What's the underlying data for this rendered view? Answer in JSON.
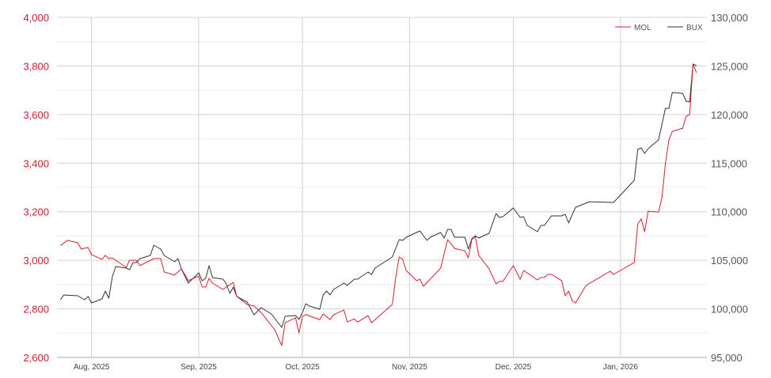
{
  "chart_data": {
    "type": "line",
    "title": "",
    "xlabel": "",
    "ylabel": "",
    "xlim": [
      "2025-07-22",
      "2026-01-26"
    ],
    "ylim_left": [
      2600,
      4000
    ],
    "ylim_right": [
      95000,
      130000
    ],
    "grid": true,
    "legend_position": "top-right",
    "left_ticks": [
      "2,600",
      "2,800",
      "3,000",
      "3,200",
      "3,400",
      "3,600",
      "3,800",
      "4,000"
    ],
    "left_tick_values": [
      2600,
      2800,
      3000,
      3200,
      3400,
      3600,
      3800,
      4000
    ],
    "right_ticks": [
      "95,000",
      "100,000",
      "105,000",
      "110,000",
      "115,000",
      "120,000",
      "125,000",
      "130,000"
    ],
    "right_tick_values": [
      95000,
      100000,
      105000,
      110000,
      115000,
      120000,
      125000,
      130000
    ],
    "x_ticks": [
      "Aug, 2025",
      "Sep, 2025",
      "Oct, 2025",
      "Nov, 2025",
      "Dec, 2025",
      "Jan, 2026"
    ],
    "x_tick_dates": [
      "2025-08-01",
      "2025-09-01",
      "2025-10-01",
      "2025-11-01",
      "2025-12-01",
      "2026-01-01"
    ],
    "series": [
      {
        "name": "MOL",
        "axis": "left",
        "color": "#d0202e",
        "points": [
          [
            "2025-07-23",
            3060
          ],
          [
            "2025-07-25",
            3082
          ],
          [
            "2025-07-28",
            3072
          ],
          [
            "2025-07-29",
            3046
          ],
          [
            "2025-07-31",
            3053
          ],
          [
            "2025-08-01",
            3023
          ],
          [
            "2025-08-04",
            3004
          ],
          [
            "2025-08-05",
            3020
          ],
          [
            "2025-08-06",
            3007
          ],
          [
            "2025-08-07",
            3010
          ],
          [
            "2025-08-11",
            2971
          ],
          [
            "2025-08-12",
            3000
          ],
          [
            "2025-08-14",
            3000
          ],
          [
            "2025-08-15",
            2978
          ],
          [
            "2025-08-19",
            3007
          ],
          [
            "2025-08-21",
            3007
          ],
          [
            "2025-08-22",
            2952
          ],
          [
            "2025-08-25",
            2939
          ],
          [
            "2025-08-27",
            2965
          ],
          [
            "2025-08-29",
            2916
          ],
          [
            "2025-09-01",
            2935
          ],
          [
            "2025-09-02",
            2890
          ],
          [
            "2025-09-03",
            2890
          ],
          [
            "2025-09-04",
            2926
          ],
          [
            "2025-09-05",
            2906
          ],
          [
            "2025-09-08",
            2880
          ],
          [
            "2025-09-11",
            2909
          ],
          [
            "2025-09-12",
            2851
          ],
          [
            "2025-09-15",
            2818
          ],
          [
            "2025-09-17",
            2812
          ],
          [
            "2025-09-19",
            2786
          ],
          [
            "2025-09-23",
            2714
          ],
          [
            "2025-09-25",
            2649
          ],
          [
            "2025-09-26",
            2743
          ],
          [
            "2025-09-29",
            2763
          ],
          [
            "2025-09-30",
            2701
          ],
          [
            "2025-10-01",
            2769
          ],
          [
            "2025-10-02",
            2776
          ],
          [
            "2025-10-06",
            2756
          ],
          [
            "2025-10-07",
            2779
          ],
          [
            "2025-10-09",
            2756
          ],
          [
            "2025-10-10",
            2776
          ],
          [
            "2025-10-13",
            2795
          ],
          [
            "2025-10-14",
            2746
          ],
          [
            "2025-10-16",
            2759
          ],
          [
            "2025-10-17",
            2746
          ],
          [
            "2025-10-20",
            2772
          ],
          [
            "2025-10-21",
            2743
          ],
          [
            "2025-10-27",
            2818
          ],
          [
            "2025-10-28",
            2932
          ],
          [
            "2025-10-29",
            3013
          ],
          [
            "2025-10-30",
            3004
          ],
          [
            "2025-10-31",
            2958
          ],
          [
            "2025-11-03",
            2916
          ],
          [
            "2025-11-04",
            2922
          ],
          [
            "2025-11-05",
            2893
          ],
          [
            "2025-11-10",
            2968
          ],
          [
            "2025-11-12",
            3085
          ],
          [
            "2025-11-14",
            3049
          ],
          [
            "2025-11-17",
            3039
          ],
          [
            "2025-11-18",
            3010
          ],
          [
            "2025-11-19",
            3085
          ],
          [
            "2025-11-20",
            3098
          ],
          [
            "2025-11-21",
            3020
          ],
          [
            "2025-11-24",
            2965
          ],
          [
            "2025-11-26",
            2903
          ],
          [
            "2025-11-27",
            2913
          ],
          [
            "2025-11-28",
            2913
          ],
          [
            "2025-12-01",
            2978
          ],
          [
            "2025-12-03",
            2922
          ],
          [
            "2025-12-04",
            2958
          ],
          [
            "2025-12-08",
            2919
          ],
          [
            "2025-12-09",
            2929
          ],
          [
            "2025-12-10",
            2929
          ],
          [
            "2025-12-11",
            2942
          ],
          [
            "2025-12-12",
            2942
          ],
          [
            "2025-12-15",
            2916
          ],
          [
            "2025-12-16",
            2854
          ],
          [
            "2025-12-17",
            2873
          ],
          [
            "2025-12-18",
            2834
          ],
          [
            "2025-12-19",
            2824
          ],
          [
            "2025-12-22",
            2896
          ],
          [
            "2025-12-29",
            2955
          ],
          [
            "2025-12-30",
            2942
          ],
          [
            "2026-01-05",
            2991
          ],
          [
            "2026-01-06",
            3150
          ],
          [
            "2026-01-07",
            3170
          ],
          [
            "2026-01-08",
            3118
          ],
          [
            "2026-01-09",
            3202
          ],
          [
            "2026-01-12",
            3198
          ],
          [
            "2026-01-13",
            3258
          ],
          [
            "2026-01-14",
            3398
          ],
          [
            "2026-01-15",
            3495
          ],
          [
            "2026-01-16",
            3531
          ],
          [
            "2026-01-19",
            3544
          ],
          [
            "2026-01-20",
            3593
          ],
          [
            "2026-01-21",
            3600
          ],
          [
            "2026-01-22",
            3808
          ],
          [
            "2026-01-23",
            3772
          ]
        ]
      },
      {
        "name": "BUX",
        "axis": "right",
        "color": "#333333",
        "points": [
          [
            "2025-07-23",
            100940
          ],
          [
            "2025-07-24",
            101430
          ],
          [
            "2025-07-28",
            101350
          ],
          [
            "2025-07-30",
            100940
          ],
          [
            "2025-07-31",
            101270
          ],
          [
            "2025-08-01",
            100615
          ],
          [
            "2025-08-04",
            101020
          ],
          [
            "2025-08-05",
            101840
          ],
          [
            "2025-08-06",
            101100
          ],
          [
            "2025-08-07",
            103300
          ],
          [
            "2025-08-08",
            104360
          ],
          [
            "2025-08-11",
            104200
          ],
          [
            "2025-08-12",
            104030
          ],
          [
            "2025-08-13",
            104770
          ],
          [
            "2025-08-14",
            104770
          ],
          [
            "2025-08-15",
            105170
          ],
          [
            "2025-08-18",
            105500
          ],
          [
            "2025-08-19",
            106560
          ],
          [
            "2025-08-21",
            106150
          ],
          [
            "2025-08-22",
            105500
          ],
          [
            "2025-08-25",
            104850
          ],
          [
            "2025-08-26",
            105170
          ],
          [
            "2025-08-27",
            104110
          ],
          [
            "2025-08-29",
            102650
          ],
          [
            "2025-09-01",
            103710
          ],
          [
            "2025-09-02",
            102890
          ],
          [
            "2025-09-03",
            103140
          ],
          [
            "2025-09-04",
            104440
          ],
          [
            "2025-09-05",
            103220
          ],
          [
            "2025-09-08",
            103060
          ],
          [
            "2025-09-09",
            102570
          ],
          [
            "2025-09-10",
            101590
          ],
          [
            "2025-09-11",
            102240
          ],
          [
            "2025-09-12",
            101270
          ],
          [
            "2025-09-15",
            100700
          ],
          [
            "2025-09-17",
            99390
          ],
          [
            "2025-09-19",
            100130
          ],
          [
            "2025-09-22",
            99475
          ],
          [
            "2025-09-25",
            98090
          ],
          [
            "2025-09-26",
            99230
          ],
          [
            "2025-09-29",
            99310
          ],
          [
            "2025-09-30",
            98905
          ],
          [
            "2025-10-01",
            99640
          ],
          [
            "2025-10-02",
            100530
          ],
          [
            "2025-10-03",
            100290
          ],
          [
            "2025-10-06",
            99960
          ],
          [
            "2025-10-07",
            101430
          ],
          [
            "2025-10-08",
            101840
          ],
          [
            "2025-10-09",
            101430
          ],
          [
            "2025-10-10",
            102000
          ],
          [
            "2025-10-13",
            102650
          ],
          [
            "2025-10-14",
            102410
          ],
          [
            "2025-10-16",
            103060
          ],
          [
            "2025-10-17",
            103060
          ],
          [
            "2025-10-20",
            103790
          ],
          [
            "2025-10-21",
            103540
          ],
          [
            "2025-10-22",
            104200
          ],
          [
            "2025-10-27",
            105340
          ],
          [
            "2025-10-29",
            107130
          ],
          [
            "2025-10-30",
            107050
          ],
          [
            "2025-10-31",
            107370
          ],
          [
            "2025-11-04",
            108020
          ],
          [
            "2025-11-06",
            107050
          ],
          [
            "2025-11-07",
            107370
          ],
          [
            "2025-11-10",
            107860
          ],
          [
            "2025-11-11",
            107290
          ],
          [
            "2025-11-12",
            108180
          ],
          [
            "2025-11-13",
            108180
          ],
          [
            "2025-11-14",
            107370
          ],
          [
            "2025-11-17",
            107370
          ],
          [
            "2025-11-18",
            106150
          ],
          [
            "2025-11-19",
            107210
          ],
          [
            "2025-11-20",
            107530
          ],
          [
            "2025-11-21",
            107290
          ],
          [
            "2025-11-24",
            107780
          ],
          [
            "2025-11-26",
            109810
          ],
          [
            "2025-11-27",
            109410
          ],
          [
            "2025-11-28",
            109490
          ],
          [
            "2025-12-01",
            110380
          ],
          [
            "2025-12-03",
            109410
          ],
          [
            "2025-12-04",
            109490
          ],
          [
            "2025-12-05",
            108590
          ],
          [
            "2025-12-08",
            107940
          ],
          [
            "2025-12-09",
            108590
          ],
          [
            "2025-12-10",
            108590
          ],
          [
            "2025-12-12",
            109570
          ],
          [
            "2025-12-15",
            109570
          ],
          [
            "2025-12-16",
            109730
          ],
          [
            "2025-12-17",
            108840
          ],
          [
            "2025-12-19",
            110460
          ],
          [
            "2025-12-23",
            111030
          ],
          [
            "2025-12-30",
            110950
          ],
          [
            "2026-01-05",
            113230
          ],
          [
            "2026-01-06",
            116410
          ],
          [
            "2026-01-07",
            116570
          ],
          [
            "2026-01-08",
            116000
          ],
          [
            "2026-01-09",
            116490
          ],
          [
            "2026-01-12",
            117380
          ],
          [
            "2026-01-14",
            120640
          ],
          [
            "2026-01-15",
            120640
          ],
          [
            "2026-01-16",
            122270
          ],
          [
            "2026-01-19",
            122190
          ],
          [
            "2026-01-20",
            121370
          ],
          [
            "2026-01-21",
            121290
          ],
          [
            "2026-01-22",
            125200
          ],
          [
            "2026-01-23",
            125030
          ]
        ]
      }
    ]
  }
}
